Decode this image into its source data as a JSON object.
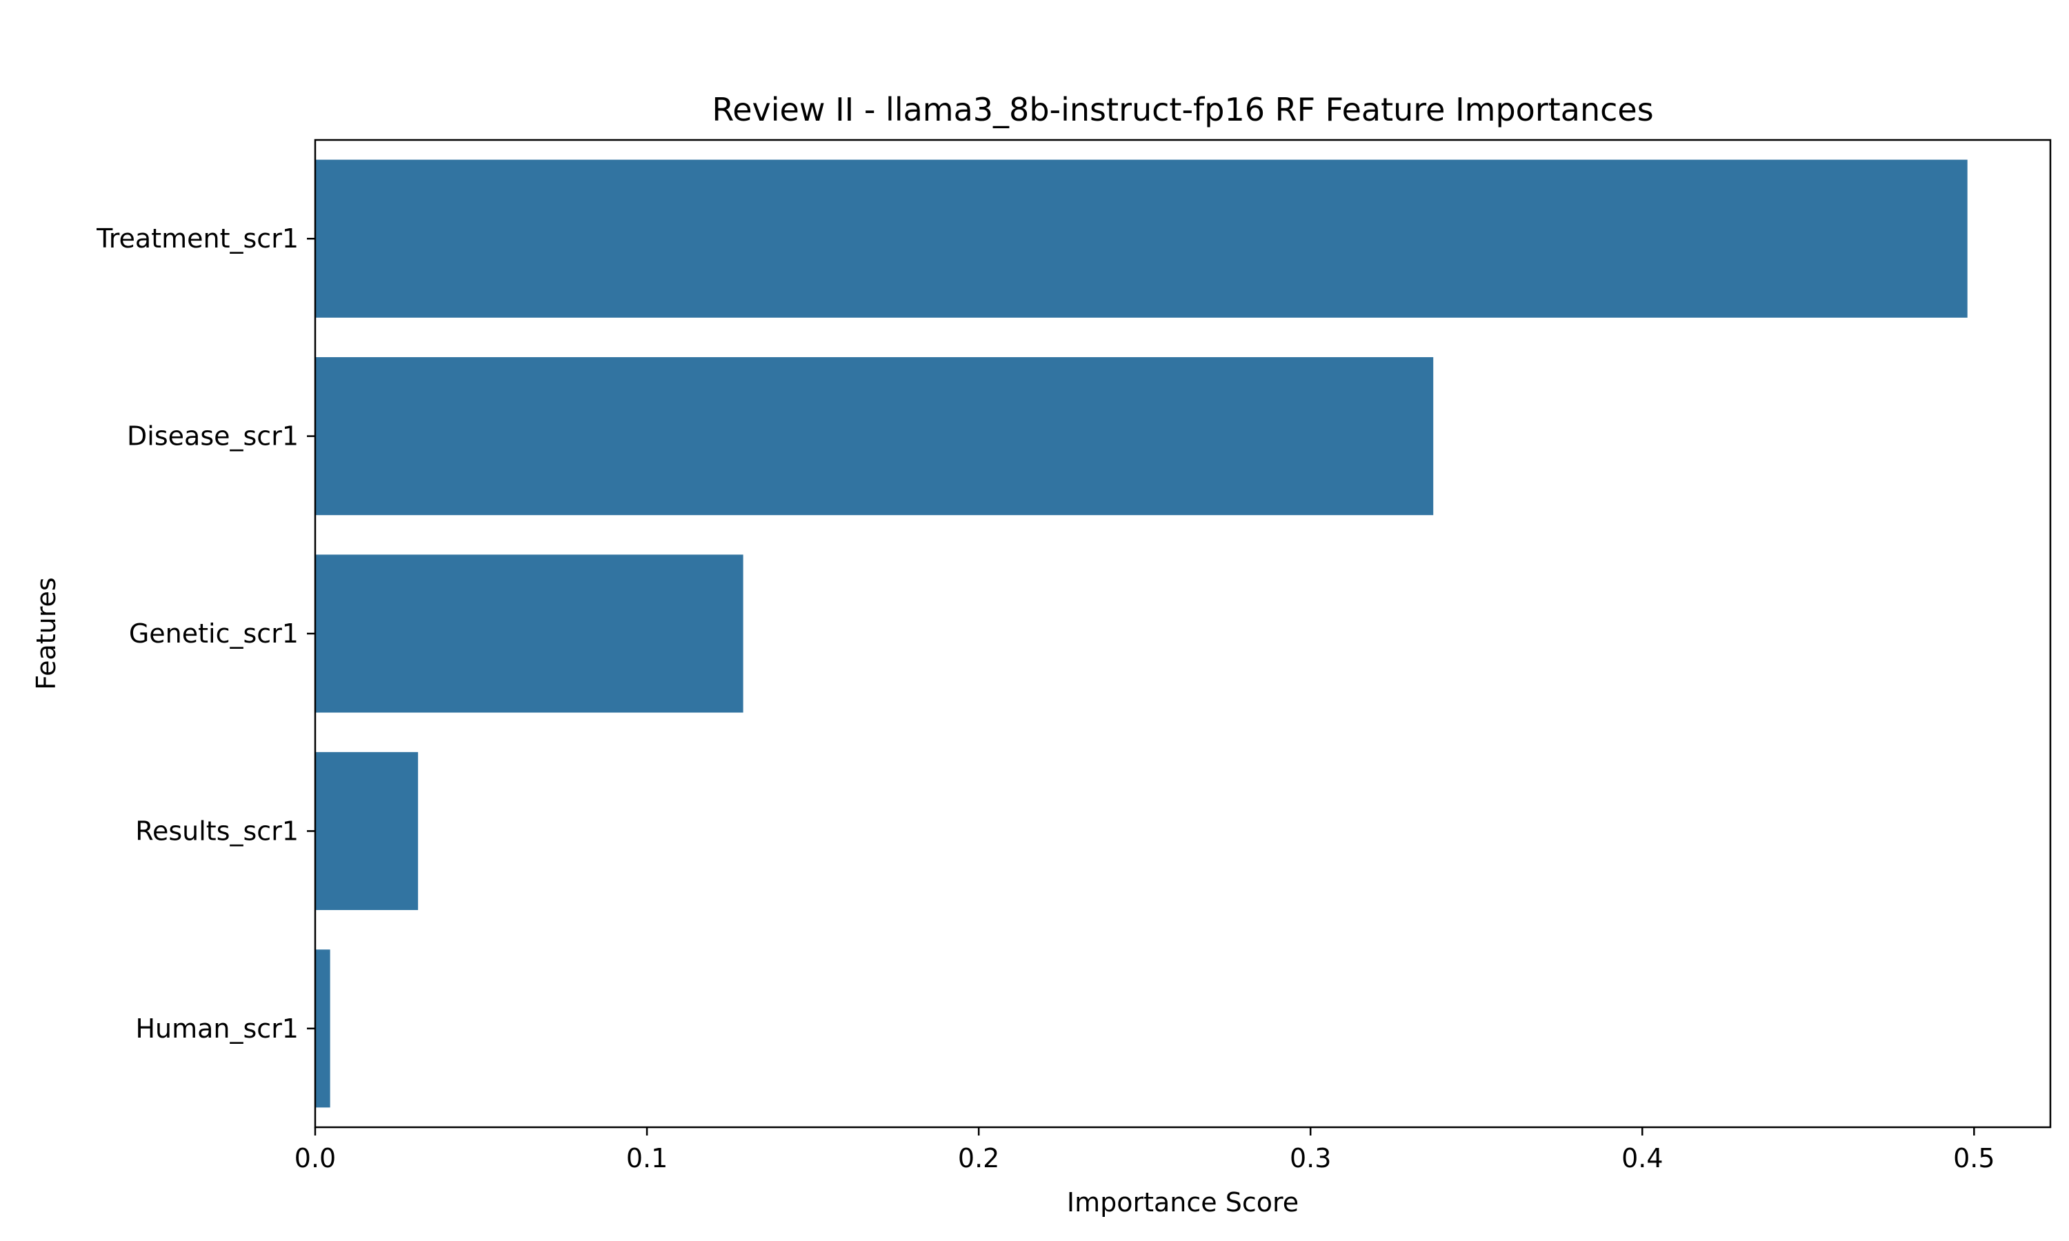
{
  "chart_data": {
    "type": "bar",
    "orientation": "horizontal",
    "title": "Review II - llama3_8b-instruct-fp16 RF Feature Importances",
    "xlabel": "Importance Score",
    "ylabel": "Features",
    "categories": [
      "Treatment_scr1",
      "Disease_scr1",
      "Genetic_scr1",
      "Results_scr1",
      "Human_scr1"
    ],
    "values": [
      0.498,
      0.337,
      0.129,
      0.031,
      0.0045
    ],
    "xlim": [
      0,
      0.523
    ],
    "xticks": [
      0.0,
      0.1,
      0.2,
      0.3,
      0.4,
      0.5
    ],
    "xtick_labels": [
      "0.0",
      "0.1",
      "0.2",
      "0.3",
      "0.4",
      "0.5"
    ],
    "bar_color": "#3274a1",
    "grid": false,
    "legend": "none"
  }
}
